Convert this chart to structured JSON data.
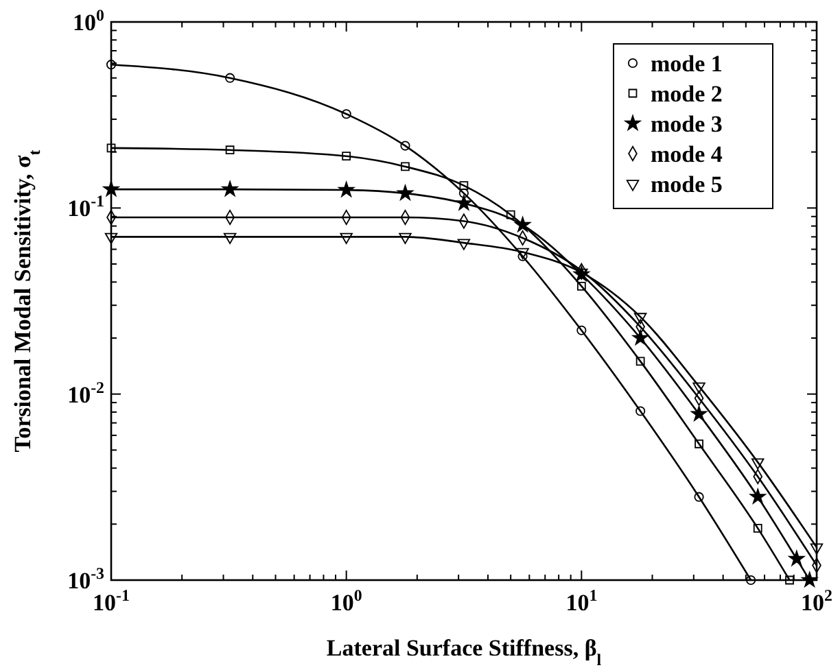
{
  "chart_data": {
    "type": "line",
    "xlabel": "Lateral Surface Stiffness, β$_{l}$",
    "ylabel": "Torsional Modal Sensitivity, σ$_{t}$",
    "log": "xy",
    "xlim": [
      0.1,
      100
    ],
    "ylim": [
      0.001,
      1
    ],
    "xticks": [
      {
        "value": 0.1,
        "label": "10$^{-1}$"
      },
      {
        "value": 0.2,
        "label": null
      },
      {
        "value": 0.3,
        "label": null
      },
      {
        "value": 0.4,
        "label": null
      },
      {
        "value": 0.5,
        "label": null
      },
      {
        "value": 0.6,
        "label": null
      },
      {
        "value": 0.7,
        "label": null
      },
      {
        "value": 0.8,
        "label": null
      },
      {
        "value": 0.9,
        "label": null
      },
      {
        "value": 1,
        "label": "10$^{0}$"
      },
      {
        "value": 2,
        "label": null
      },
      {
        "value": 3,
        "label": null
      },
      {
        "value": 4,
        "label": null
      },
      {
        "value": 5,
        "label": null
      },
      {
        "value": 6,
        "label": null
      },
      {
        "value": 7,
        "label": null
      },
      {
        "value": 8,
        "label": null
      },
      {
        "value": 9,
        "label": null
      },
      {
        "value": 10,
        "label": "10$^{1}$"
      },
      {
        "value": 20,
        "label": null
      },
      {
        "value": 30,
        "label": null
      },
      {
        "value": 40,
        "label": null
      },
      {
        "value": 50,
        "label": null
      },
      {
        "value": 60,
        "label": null
      },
      {
        "value": 70,
        "label": null
      },
      {
        "value": 80,
        "label": null
      },
      {
        "value": 90,
        "label": null
      },
      {
        "value": 100,
        "label": "10$^{2}$"
      }
    ],
    "yticks": [
      {
        "value": 0.001,
        "label": "10$^{-3}$"
      },
      {
        "value": 0.002,
        "label": null
      },
      {
        "value": 0.003,
        "label": null
      },
      {
        "value": 0.004,
        "label": null
      },
      {
        "value": 0.005,
        "label": null
      },
      {
        "value": 0.006,
        "label": null
      },
      {
        "value": 0.007,
        "label": null
      },
      {
        "value": 0.008,
        "label": null
      },
      {
        "value": 0.009,
        "label": null
      },
      {
        "value": 0.01,
        "label": "10$^{-2}$"
      },
      {
        "value": 0.02,
        "label": null
      },
      {
        "value": 0.03,
        "label": null
      },
      {
        "value": 0.04,
        "label": null
      },
      {
        "value": 0.05,
        "label": null
      },
      {
        "value": 0.06,
        "label": null
      },
      {
        "value": 0.07,
        "label": null
      },
      {
        "value": 0.08,
        "label": null
      },
      {
        "value": 0.09,
        "label": null
      },
      {
        "value": 0.1,
        "label": "10$^{-1}$"
      },
      {
        "value": 0.2,
        "label": null
      },
      {
        "value": 0.3,
        "label": null
      },
      {
        "value": 0.4,
        "label": null
      },
      {
        "value": 0.5,
        "label": null
      },
      {
        "value": 0.6,
        "label": null
      },
      {
        "value": 0.7,
        "label": null
      },
      {
        "value": 0.8,
        "label": null
      },
      {
        "value": 0.9,
        "label": null
      },
      {
        "value": 1,
        "label": "10$^{0}$"
      }
    ],
    "grid": false,
    "legend": "top right",
    "line_style": "solid",
    "series": [
      {
        "name": "mode 1",
        "color": "#000000",
        "marker": "circle",
        "x": [
          0.1,
          0.32,
          1,
          1.78,
          3.16,
          5.62,
          10,
          17.8,
          31.6,
          52.5
        ],
        "values": [
          0.59,
          0.5,
          0.32,
          0.216,
          0.12,
          0.055,
          0.022,
          0.0081,
          0.0028,
          0.001
        ]
      },
      {
        "name": "mode 2",
        "color": "#000000",
        "marker": "square",
        "x": [
          0.1,
          0.32,
          1,
          1.78,
          3.16,
          5,
          10,
          17.8,
          31.6,
          56.2,
          76.7
        ],
        "values": [
          0.21,
          0.205,
          0.19,
          0.167,
          0.132,
          0.092,
          0.038,
          0.015,
          0.0054,
          0.0019,
          0.001
        ]
      },
      {
        "name": "mode 3",
        "color": "#000000",
        "marker": "star",
        "x": [
          0.1,
          0.32,
          1,
          1.78,
          3.16,
          5.62,
          10,
          17.8,
          31.6,
          56.2,
          82.2,
          93.3
        ],
        "values": [
          0.126,
          0.126,
          0.125,
          0.12,
          0.106,
          0.081,
          0.044,
          0.02,
          0.0078,
          0.0028,
          0.0013,
          0.001
        ]
      },
      {
        "name": "mode 4",
        "color": "#000000",
        "marker": "diamond",
        "x": [
          0.1,
          0.32,
          1,
          1.78,
          3.16,
          5.62,
          10,
          17.8,
          31.6,
          56.2,
          100
        ],
        "values": [
          0.089,
          0.089,
          0.089,
          0.089,
          0.085,
          0.069,
          0.046,
          0.023,
          0.0095,
          0.0036,
          0.0012
        ]
      },
      {
        "name": "mode 5",
        "color": "#000000",
        "marker": "triangle",
        "x": [
          0.1,
          0.32,
          1,
          1.78,
          3.16,
          5.62,
          10,
          17.8,
          31.6,
          56.2,
          100
        ],
        "values": [
          0.07,
          0.07,
          0.07,
          0.07,
          0.065,
          0.058,
          0.045,
          0.026,
          0.011,
          0.0043,
          0.0015
        ]
      }
    ]
  }
}
